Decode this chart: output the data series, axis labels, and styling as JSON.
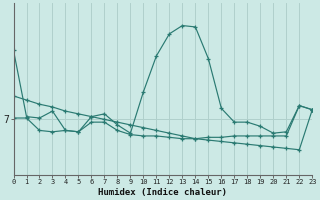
{
  "title": "",
  "xlabel": "Humidex (Indice chaleur)",
  "ylabel": "7",
  "background_color": "#cce9e5",
  "grid_color": "#b0d0cc",
  "line_color": "#2a7a72",
  "x_min": 0,
  "x_max": 23,
  "figsize": [
    3.2,
    2.0
  ],
  "dpi": 100,
  "series": [
    {
      "x": [
        0,
        1,
        2,
        3,
        4,
        5,
        6,
        7,
        8,
        9,
        10,
        11,
        12,
        13,
        14,
        15,
        16,
        17,
        18,
        19,
        20,
        21,
        22,
        23
      ],
      "y": [
        9.5,
        7.1,
        7.05,
        7.3,
        6.6,
        6.55,
        7.1,
        7.2,
        6.8,
        6.5,
        8.0,
        9.3,
        10.1,
        10.4,
        10.35,
        9.2,
        7.4,
        6.9,
        6.9,
        6.75,
        6.5,
        6.55,
        7.5,
        7.35
      ]
    },
    {
      "x": [
        0,
        1,
        2,
        3,
        4,
        5,
        6,
        7,
        8,
        9,
        10,
        11,
        12,
        13,
        14,
        15,
        16,
        17,
        18,
        19,
        20,
        21,
        22,
        23
      ],
      "y": [
        7.85,
        7.7,
        7.55,
        7.45,
        7.3,
        7.2,
        7.1,
        7.0,
        6.9,
        6.8,
        6.7,
        6.6,
        6.5,
        6.4,
        6.3,
        6.25,
        6.2,
        6.15,
        6.1,
        6.05,
        6.0,
        5.95,
        5.9,
        7.35
      ]
    },
    {
      "x": [
        0,
        1,
        2,
        3,
        4,
        5,
        6,
        7,
        8,
        9,
        10,
        11,
        12,
        13,
        14,
        15,
        16,
        17,
        18,
        19,
        20,
        21,
        22,
        23
      ],
      "y": [
        7.05,
        7.05,
        6.6,
        6.55,
        6.6,
        6.55,
        6.9,
        6.9,
        6.6,
        6.45,
        6.4,
        6.4,
        6.35,
        6.3,
        6.3,
        6.35,
        6.35,
        6.4,
        6.4,
        6.4,
        6.4,
        6.4,
        7.5,
        7.35
      ]
    }
  ],
  "ytick_val": 7.0,
  "ytick_label": "7"
}
